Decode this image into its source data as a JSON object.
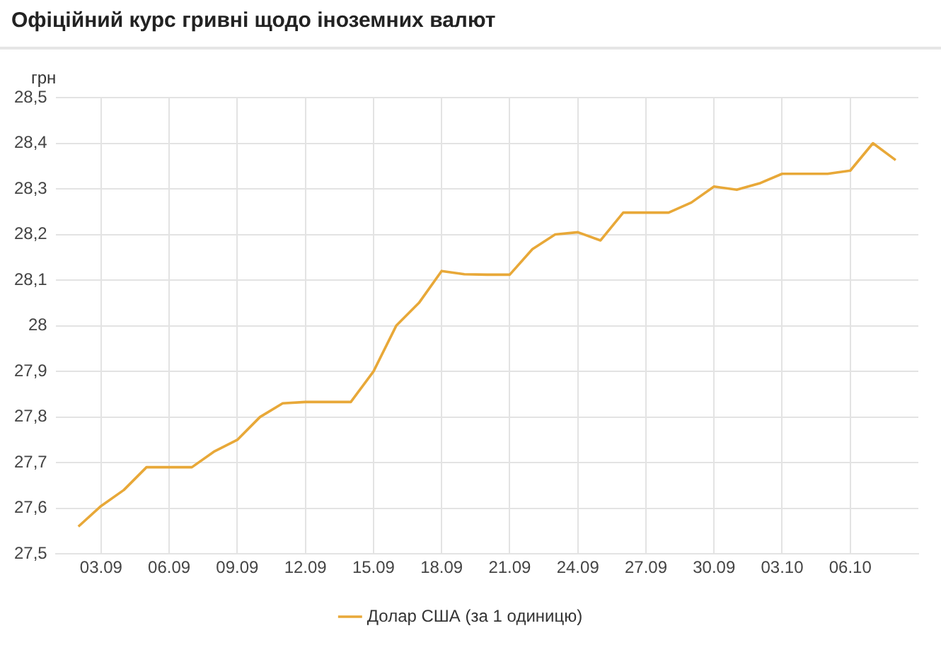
{
  "chart_data": {
    "type": "line",
    "title": "Офіційний курс гривні щодо іноземних валют",
    "ylabel": "грн",
    "x": [
      "--09-02",
      "--09-03",
      "--09-04",
      "--09-05",
      "--09-06",
      "--09-07",
      "--09-08",
      "--09-09",
      "--09-10",
      "--09-11",
      "--09-12",
      "--09-13",
      "--09-14",
      "--09-15",
      "--09-16",
      "--09-17",
      "--09-18",
      "--09-19",
      "--09-20",
      "--09-21",
      "--09-22",
      "--09-23",
      "--09-24",
      "--09-25",
      "--09-26",
      "--09-27",
      "--09-28",
      "--09-29",
      "--09-30",
      "--10-01",
      "--10-02",
      "--10-03",
      "--10-04",
      "--10-05",
      "--10-06",
      "--10-07",
      "--10-08"
    ],
    "series": [
      {
        "name": "Долар США (за 1 одиницю)",
        "color": "#e8a838",
        "values": [
          27.56,
          27.605,
          27.64,
          27.69,
          27.69,
          27.69,
          27.725,
          27.75,
          27.8,
          27.83,
          27.833,
          27.833,
          27.833,
          27.9,
          28.0,
          28.05,
          28.12,
          28.113,
          28.112,
          28.112,
          28.168,
          28.2,
          28.205,
          28.187,
          28.248,
          28.248,
          28.248,
          28.27,
          28.305,
          28.298,
          28.312,
          28.333,
          28.333,
          28.333,
          28.34,
          28.4,
          28.363
        ]
      }
    ],
    "xlim": [
      "--09-01",
      "--10-09"
    ],
    "xticks": [
      {
        "value": "--09-03",
        "label": "03.09"
      },
      {
        "value": "--09-06",
        "label": "06.09"
      },
      {
        "value": "--09-09",
        "label": "09.09"
      },
      {
        "value": "--09-12",
        "label": "12.09"
      },
      {
        "value": "--09-15",
        "label": "15.09"
      },
      {
        "value": "--09-18",
        "label": "18.09"
      },
      {
        "value": "--09-21",
        "label": "21.09"
      },
      {
        "value": "--09-24",
        "label": "24.09"
      },
      {
        "value": "--09-27",
        "label": "27.09"
      },
      {
        "value": "--09-30",
        "label": "30.09"
      },
      {
        "value": "--10-03",
        "label": "03.10"
      },
      {
        "value": "--10-06",
        "label": "06.10"
      }
    ],
    "ylim": [
      27.5,
      28.5
    ],
    "yticks": [
      {
        "value": 27.5,
        "label": "27,5"
      },
      {
        "value": 27.6,
        "label": "27,6"
      },
      {
        "value": 27.7,
        "label": "27,7"
      },
      {
        "value": 27.8,
        "label": "27,8"
      },
      {
        "value": 27.9,
        "label": "27,9"
      },
      28,
      {
        "value": 28.1,
        "label": "28,1"
      },
      {
        "value": 28.2,
        "label": "28,2"
      },
      {
        "value": 28.3,
        "label": "28,3"
      },
      {
        "value": 28.4,
        "label": "28,4"
      },
      {
        "value": 28.5,
        "label": "28,5"
      }
    ],
    "grid": true,
    "legend": "bottom",
    "marker": "none",
    "line_style": "solid"
  }
}
